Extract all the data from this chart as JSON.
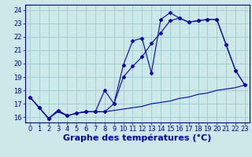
{
  "title": "Graphe des températures (°C)",
  "hours": [
    0,
    1,
    2,
    3,
    4,
    5,
    6,
    7,
    8,
    9,
    10,
    11,
    12,
    13,
    14,
    15,
    16,
    17,
    18,
    19,
    20,
    21,
    22,
    23
  ],
  "line1": [
    17.5,
    16.7,
    15.9,
    16.5,
    16.1,
    16.3,
    16.4,
    16.4,
    18.0,
    17.0,
    19.9,
    21.7,
    21.9,
    19.3,
    23.3,
    23.8,
    23.4,
    23.1,
    23.2,
    23.3,
    23.3,
    21.4,
    19.5,
    18.4
  ],
  "line2": [
    17.5,
    16.7,
    15.9,
    16.5,
    16.1,
    16.3,
    16.4,
    16.4,
    16.4,
    17.0,
    19.0,
    19.8,
    20.5,
    21.5,
    22.3,
    23.2,
    23.4,
    23.1,
    23.2,
    23.3,
    23.3,
    21.4,
    19.5,
    18.4
  ],
  "line3": [
    17.5,
    16.7,
    15.9,
    16.4,
    16.1,
    16.3,
    16.4,
    16.4,
    16.4,
    16.5,
    16.6,
    16.7,
    16.8,
    17.0,
    17.1,
    17.2,
    17.4,
    17.5,
    17.7,
    17.8,
    18.0,
    18.1,
    18.2,
    18.4
  ],
  "line_color": "#0000cc",
  "bg_color": "#cce8e8",
  "grid_color": "#99cccc",
  "ylim_min": 15.6,
  "ylim_max": 24.4,
  "yticks": [
    16,
    17,
    18,
    19,
    20,
    21,
    22,
    23,
    24
  ],
  "xlim_min": -0.5,
  "xlim_max": 23.5,
  "tick_fontsize": 6,
  "label_fontsize": 8,
  "fig_width": 3.2,
  "fig_height": 2.0,
  "dpi": 100
}
